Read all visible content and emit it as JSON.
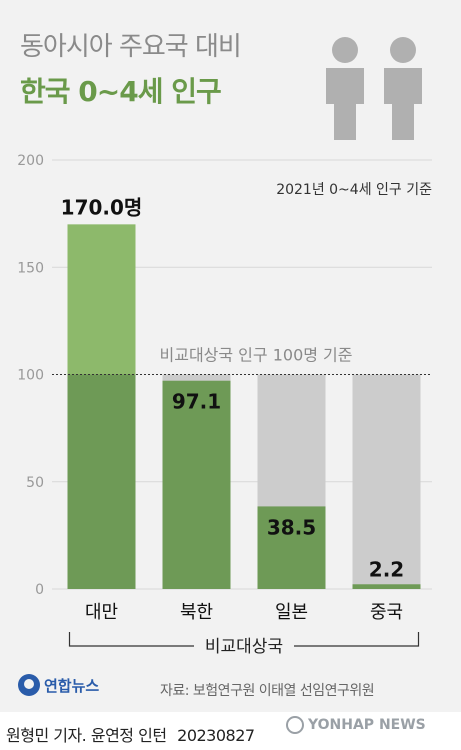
{
  "header": {
    "title_line1": "동아시아 주요국 대비",
    "title_line2": "한국 0~4세 인구"
  },
  "chart_data": {
    "type": "bar",
    "note": "2021년 0~4세 인구 기준",
    "categories": [
      "대만",
      "북한",
      "일본",
      "중국"
    ],
    "values": [
      170.0,
      97.1,
      38.5,
      2.2
    ],
    "value_labels": [
      "170.0명",
      "97.1",
      "38.5",
      "2.2"
    ],
    "baseline_value": 100,
    "baseline_label": "비교대상국 인구 100명 기준",
    "group_label": "비교대상국",
    "ylim": [
      0,
      200
    ],
    "yticks": [
      "0",
      "50",
      "100",
      "150",
      "200"
    ],
    "yticks_values": [
      0,
      50,
      100,
      150,
      200
    ],
    "colors": {
      "bar_below_baseline": "#6e9a56",
      "bar_above_baseline": "#8db96b",
      "baseline_bg": "#cccccc",
      "grid": "#d8d8d8",
      "axis_text": "#999999"
    }
  },
  "footer": {
    "logo_text": "연합뉴스",
    "source": "자료: 보험연구원 이태열 선임연구위원",
    "credit": "원형민 기자. 윤연정 인턴",
    "date": "20230827",
    "watermark": "YONHAP NEWS"
  },
  "icons": [
    "person-icon",
    "person-icon"
  ]
}
